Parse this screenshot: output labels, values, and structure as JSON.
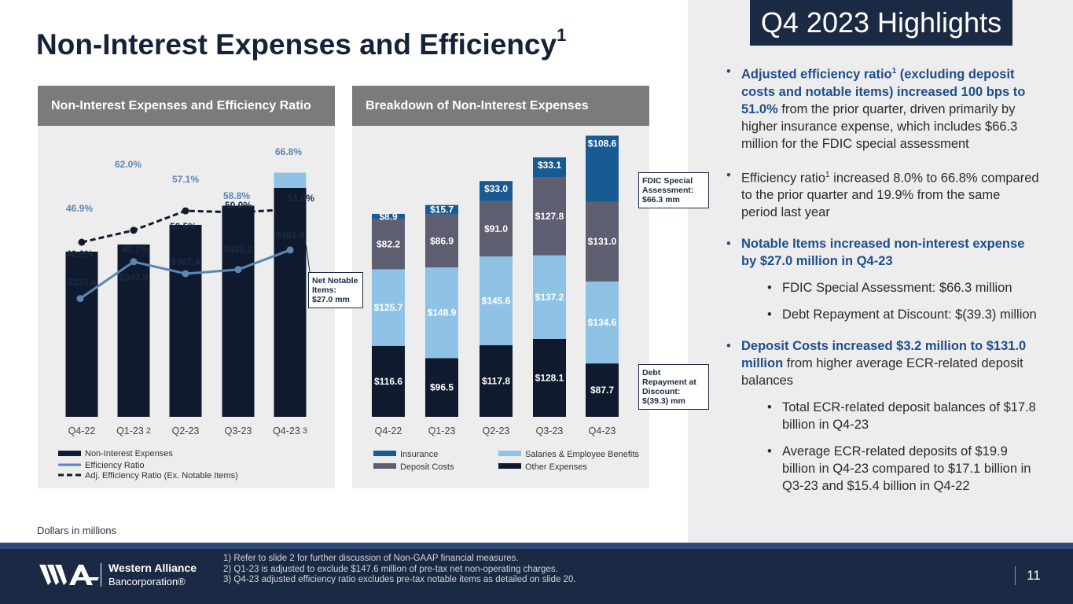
{
  "highlights_title": "Q4 2023 Highlights",
  "page_title": "Non-Interest Expenses and Efficiency",
  "page_title_sup": "1",
  "left_panel": {
    "header": "Non-Interest Expenses and Efficiency Ratio"
  },
  "right_panel": {
    "header": "Breakdown of Non-Interest Expenses"
  },
  "chart_data": [
    {
      "type": "bar",
      "title": "Non-Interest Expenses and Efficiency Ratio",
      "categories": [
        "Q4-22",
        "Q1-23",
        "Q2-23",
        "Q3-23",
        "Q4-23"
      ],
      "category_sups": [
        "",
        "2",
        "",
        "",
        "3"
      ],
      "series": [
        {
          "name": "Non-Interest Expenses",
          "values": [
            333.4,
            347.9,
            387.4,
            426.2,
            461.9
          ],
          "labels": [
            "$333.4",
            "$347.9",
            "$387.4",
            "$426.2",
            "$461.9"
          ],
          "color": "#0f1a2e"
        },
        {
          "name": "Efficiency Ratio",
          "values": [
            46.9,
            62.0,
            57.1,
            58.8,
            66.8
          ],
          "labels": [
            "46.9%",
            "62.0%",
            "57.1%",
            "58.8%",
            "66.8%"
          ],
          "color": "#5b86b5"
        },
        {
          "name": "Adj. Efficiency Ratio (Ex. Notable Items)",
          "values": [
            40.0,
            43.2,
            50.5,
            50.0,
            51.0
          ],
          "labels": [
            "40.0%",
            "43.2%",
            "50.5%",
            "50.0%",
            "51.0%"
          ],
          "color": "#0f1a2e"
        }
      ],
      "net_notable_items_q4_23": 27.0,
      "net_notable_color": "#8ec3e6",
      "legend": [
        "Non-Interest Expenses",
        "Efficiency Ratio",
        "Adj. Efficiency Ratio (Ex. Notable Items)"
      ],
      "units": "Dollars in millions"
    },
    {
      "type": "bar",
      "title": "Breakdown of Non-Interest Expenses",
      "stacked": true,
      "categories": [
        "Q4-22",
        "Q1-23",
        "Q2-23",
        "Q3-23",
        "Q4-23"
      ],
      "series": [
        {
          "name": "Other Expenses",
          "values": [
            116.6,
            96.5,
            117.8,
            128.1,
            87.7
          ],
          "labels": [
            "$116.6",
            "$96.5",
            "$117.8",
            "$128.1",
            "$87.7"
          ],
          "color": "#0f1a2e"
        },
        {
          "name": "Salaries & Employee Benefits",
          "values": [
            125.7,
            148.9,
            145.6,
            137.2,
            134.6
          ],
          "labels": [
            "$125.7",
            "$148.9",
            "$145.6",
            "$137.2",
            "$134.6"
          ],
          "color": "#8ec3e6"
        },
        {
          "name": "Deposit Costs",
          "values": [
            82.2,
            86.9,
            91.0,
            127.8,
            131.0
          ],
          "labels": [
            "$82.2",
            "$86.9",
            "$91.0",
            "$127.8",
            "$131.0"
          ],
          "color": "#5d5e70"
        },
        {
          "name": "Insurance",
          "values": [
            8.9,
            15.7,
            33.0,
            33.1,
            108.6
          ],
          "labels": [
            "$8.9",
            "$15.7",
            "$33.0",
            "$33.1",
            "$108.6"
          ],
          "color": "#1a5a93"
        }
      ],
      "legend": [
        "Insurance",
        "Salaries & Employee Benefits",
        "Deposit Costs",
        "Other Expenses"
      ]
    }
  ],
  "callouts": {
    "net_notable": "Net Notable Items: $27.0 mm",
    "fdic": "FDIC Special Assessment: $66.3 mm",
    "debt": "Debt Repayment at Discount: $(39.3) mm"
  },
  "bullets": {
    "b1_hl": "Adjusted efficiency ratio",
    "b1_sup": "1",
    "b1_hl2": " (excluding deposit costs and notable items) increased 100 bps to 51.0%",
    "b1_rest": " from the prior quarter, driven primarily by higher insurance expense, which includes $66.3 million for the FDIC special assessment",
    "b2_a": "Efficiency ratio",
    "b2_sup": "1",
    "b2_b": " increased 8.0% to 66.8% compared to the prior quarter and 19.9% from the same period last year",
    "b3_hl": "Notable Items increased non-interest expense by $27.0 million in Q4-23",
    "b3_s1": "FDIC Special Assessment: $66.3 million",
    "b3_s2": "Debt Repayment at Discount: $(39.3) million",
    "b4_hl": "Deposit Costs increased $3.2 million to $131.0 million",
    "b4_rest": " from higher average ECR-related deposit balances",
    "b4_s1": "Total ECR-related deposit balances of $17.8 billion in Q4-23",
    "b4_s2": "Average ECR-related deposits of $19.9 billion in Q4-23 compared to $17.1 billion in Q3-23 and $15.4 billion in Q4-22"
  },
  "dollars_note": "Dollars in millions",
  "footer": {
    "logo_name": "Western Alliance",
    "logo_sub": "Bancorporation®",
    "notes": [
      "1)  Refer to slide 2 for further discussion of Non-GAAP financial measures.",
      "2)  Q1-23 is adjusted to exclude $147.6 million of pre-tax net non-operating charges.",
      "3)  Q4-23 adjusted efficiency ratio excludes pre-tax notable items as detailed on slide 20."
    ],
    "page_number": "11"
  }
}
